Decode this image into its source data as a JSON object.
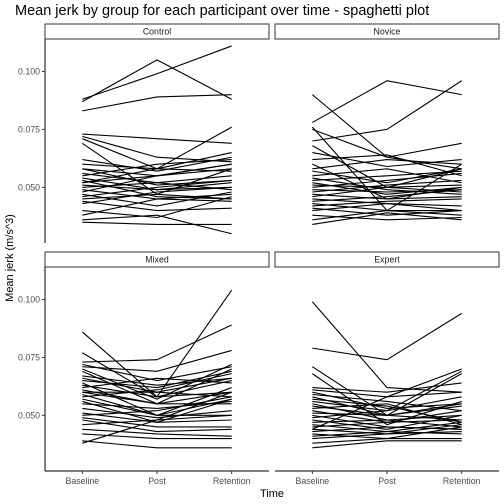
{
  "chart_data": {
    "type": "line",
    "title": "Mean jerk by group for each participant over time - spaghetti plot",
    "xlabel": "Time",
    "ylabel": "Mean jerk (m/s^3)",
    "categories": [
      "Baseline",
      "Post",
      "Retention"
    ],
    "y_ticks": [
      0.05,
      0.075,
      0.1
    ],
    "y_tick_labels": [
      "0.050",
      "0.075",
      "0.100"
    ],
    "ylim": [
      0.026,
      0.114
    ],
    "grid": false,
    "legend": "none",
    "line_color": "#000000",
    "facets": [
      {
        "name": "Control",
        "series": [
          [
            0.087,
            0.105,
            0.088
          ],
          [
            0.088,
            0.099,
            0.111
          ],
          [
            0.083,
            0.089,
            0.09
          ],
          [
            0.073,
            0.071,
            0.069
          ],
          [
            0.072,
            0.063,
            0.061
          ],
          [
            0.071,
            0.058,
            0.076
          ],
          [
            0.069,
            0.047,
            0.058
          ],
          [
            0.062,
            0.057,
            0.063
          ],
          [
            0.06,
            0.058,
            0.057
          ],
          [
            0.058,
            0.055,
            0.06
          ],
          [
            0.056,
            0.052,
            0.055
          ],
          [
            0.055,
            0.06,
            0.062
          ],
          [
            0.054,
            0.049,
            0.05
          ],
          [
            0.053,
            0.046,
            0.045
          ],
          [
            0.052,
            0.055,
            0.058
          ],
          [
            0.051,
            0.049,
            0.052
          ],
          [
            0.05,
            0.052,
            0.049
          ],
          [
            0.049,
            0.045,
            0.047
          ],
          [
            0.048,
            0.055,
            0.06
          ],
          [
            0.047,
            0.042,
            0.048
          ],
          [
            0.046,
            0.05,
            0.053
          ],
          [
            0.045,
            0.047,
            0.045
          ],
          [
            0.044,
            0.04,
            0.041
          ],
          [
            0.043,
            0.048,
            0.05
          ],
          [
            0.04,
            0.037,
            0.046
          ],
          [
            0.038,
            0.045,
            0.044
          ],
          [
            0.036,
            0.038,
            0.03
          ],
          [
            0.035,
            0.034,
            0.034
          ],
          [
            0.058,
            0.051,
            0.053
          ],
          [
            0.052,
            0.058,
            0.065
          ]
        ]
      },
      {
        "name": "Novice",
        "series": [
          [
            0.09,
            0.063,
            0.058
          ],
          [
            0.078,
            0.096,
            0.09
          ],
          [
            0.076,
            0.04,
            0.06
          ],
          [
            0.075,
            0.063,
            0.069
          ],
          [
            0.07,
            0.075,
            0.096
          ],
          [
            0.068,
            0.05,
            0.058
          ],
          [
            0.065,
            0.059,
            0.062
          ],
          [
            0.062,
            0.064,
            0.055
          ],
          [
            0.06,
            0.045,
            0.05
          ],
          [
            0.058,
            0.062,
            0.06
          ],
          [
            0.057,
            0.052,
            0.058
          ],
          [
            0.055,
            0.058,
            0.052
          ],
          [
            0.054,
            0.049,
            0.047
          ],
          [
            0.053,
            0.055,
            0.057
          ],
          [
            0.052,
            0.047,
            0.05
          ],
          [
            0.051,
            0.05,
            0.051
          ],
          [
            0.05,
            0.053,
            0.056
          ],
          [
            0.049,
            0.048,
            0.049
          ],
          [
            0.048,
            0.051,
            0.053
          ],
          [
            0.047,
            0.045,
            0.046
          ],
          [
            0.046,
            0.05,
            0.048
          ],
          [
            0.045,
            0.043,
            0.042
          ],
          [
            0.044,
            0.046,
            0.049
          ],
          [
            0.043,
            0.04,
            0.038
          ],
          [
            0.042,
            0.044,
            0.045
          ],
          [
            0.041,
            0.038,
            0.04
          ],
          [
            0.04,
            0.043,
            0.04
          ],
          [
            0.038,
            0.036,
            0.037
          ],
          [
            0.036,
            0.04,
            0.04
          ],
          [
            0.034,
            0.039,
            0.036
          ]
        ]
      },
      {
        "name": "Mixed",
        "series": [
          [
            0.086,
            0.058,
            0.065
          ],
          [
            0.077,
            0.058,
            0.104
          ],
          [
            0.073,
            0.074,
            0.089
          ],
          [
            0.072,
            0.065,
            0.071
          ],
          [
            0.071,
            0.069,
            0.078
          ],
          [
            0.07,
            0.057,
            0.072
          ],
          [
            0.069,
            0.055,
            0.07
          ],
          [
            0.067,
            0.063,
            0.066
          ],
          [
            0.066,
            0.06,
            0.066
          ],
          [
            0.065,
            0.062,
            0.069
          ],
          [
            0.064,
            0.05,
            0.057
          ],
          [
            0.063,
            0.058,
            0.06
          ],
          [
            0.062,
            0.066,
            0.064
          ],
          [
            0.061,
            0.055,
            0.06
          ],
          [
            0.06,
            0.06,
            0.058
          ],
          [
            0.06,
            0.055,
            0.055
          ],
          [
            0.059,
            0.05,
            0.062
          ],
          [
            0.058,
            0.061,
            0.068
          ],
          [
            0.057,
            0.05,
            0.05
          ],
          [
            0.056,
            0.047,
            0.057
          ],
          [
            0.055,
            0.053,
            0.056
          ],
          [
            0.053,
            0.049,
            0.052
          ],
          [
            0.051,
            0.047,
            0.048
          ],
          [
            0.05,
            0.052,
            0.058
          ],
          [
            0.049,
            0.045,
            0.045
          ],
          [
            0.048,
            0.043,
            0.044
          ],
          [
            0.046,
            0.048,
            0.05
          ],
          [
            0.044,
            0.042,
            0.041
          ],
          [
            0.042,
            0.04,
            0.04
          ],
          [
            0.039,
            0.036,
            0.036
          ],
          [
            0.038,
            0.048,
            0.06
          ]
        ]
      },
      {
        "name": "Expert",
        "series": [
          [
            0.099,
            0.062,
            0.06
          ],
          [
            0.079,
            0.074,
            0.094
          ],
          [
            0.071,
            0.05,
            0.055
          ],
          [
            0.068,
            0.046,
            0.056
          ],
          [
            0.062,
            0.06,
            0.064
          ],
          [
            0.061,
            0.058,
            0.06
          ],
          [
            0.06,
            0.053,
            0.055
          ],
          [
            0.059,
            0.056,
            0.052
          ],
          [
            0.058,
            0.05,
            0.068
          ],
          [
            0.057,
            0.054,
            0.047
          ],
          [
            0.056,
            0.052,
            0.069
          ],
          [
            0.055,
            0.048,
            0.05
          ],
          [
            0.054,
            0.05,
            0.048
          ],
          [
            0.053,
            0.055,
            0.046
          ],
          [
            0.052,
            0.047,
            0.052
          ],
          [
            0.051,
            0.05,
            0.054
          ],
          [
            0.05,
            0.045,
            0.044
          ],
          [
            0.049,
            0.052,
            0.058
          ],
          [
            0.048,
            0.044,
            0.05
          ],
          [
            0.047,
            0.048,
            0.045
          ],
          [
            0.046,
            0.043,
            0.042
          ],
          [
            0.045,
            0.047,
            0.048
          ],
          [
            0.044,
            0.042,
            0.046
          ],
          [
            0.043,
            0.045,
            0.044
          ],
          [
            0.042,
            0.04,
            0.045
          ],
          [
            0.041,
            0.043,
            0.047
          ],
          [
            0.04,
            0.042,
            0.043
          ],
          [
            0.038,
            0.04,
            0.04
          ],
          [
            0.036,
            0.039,
            0.039
          ],
          [
            0.044,
            0.058,
            0.07
          ]
        ]
      }
    ]
  }
}
